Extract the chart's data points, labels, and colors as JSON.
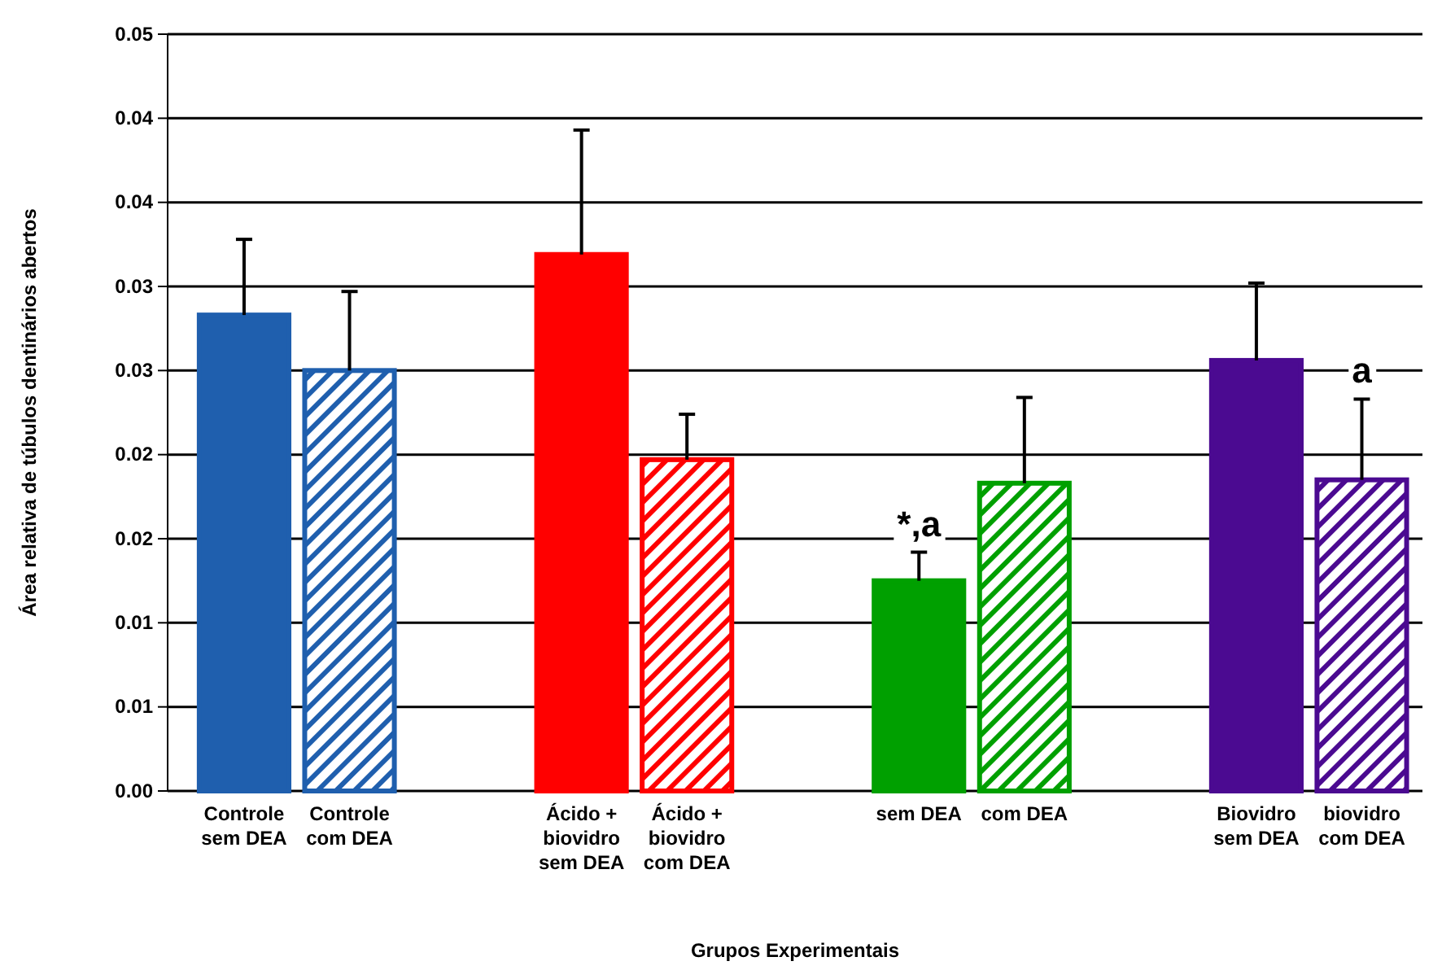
{
  "chart_data": {
    "type": "bar",
    "xlabel": "Grupos Experimentais",
    "ylabel": "Área relativa de túbulos dentinários abertos",
    "categories": [
      "Controle sem DEA",
      "Controle com DEA",
      "Ácido + biovidro sem DEA",
      "Ácido + biovidro com DEA",
      "sem DEA",
      "com DEA",
      "Biovidro sem DEA",
      "biovidro com DEA"
    ],
    "values": [
      0.0283,
      0.025,
      0.0319,
      0.0197,
      0.0125,
      0.0183,
      0.0256,
      0.0185
    ],
    "colors": [
      "#1f5fae",
      "#1f5fae",
      "#ff0000",
      "#ff0000",
      "#00a000",
      "#00a000",
      "#4b0a91",
      "#4b0a91"
    ],
    "errors": [
      [
        0.0283,
        0.0328
      ],
      [
        0.025,
        0.0297
      ],
      [
        0.0319,
        0.0393
      ],
      [
        0.0197,
        0.0224
      ],
      [
        0.0125,
        0.0142
      ],
      [
        0.0183,
        0.0234
      ],
      [
        0.0256,
        0.0302
      ],
      [
        0.0185,
        0.0233
      ]
    ],
    "ylim": [
      0,
      0.045
    ],
    "yticks": [
      {
        "value": 0,
        "label": "0.00"
      },
      {
        "value": 0.005,
        "label": "0.01"
      },
      {
        "value": 0.01,
        "label": "0.01"
      },
      {
        "value": 0.015,
        "label": "0.02"
      },
      {
        "value": 0.02,
        "label": "0.02"
      },
      {
        "value": 0.025,
        "label": "0.03"
      },
      {
        "value": 0.03,
        "label": "0.03"
      },
      {
        "value": 0.035,
        "label": "0.04"
      },
      {
        "value": 0.04,
        "label": "0.04"
      },
      {
        "value": 0.045,
        "label": "0.05"
      }
    ],
    "grid": "y",
    "annotations": [
      {
        "text": "*,a",
        "x": "sem DEA",
        "y": 0.0142
      },
      {
        "text": "a",
        "x": "biovidro com DEA",
        "y": 0.0233
      }
    ]
  }
}
